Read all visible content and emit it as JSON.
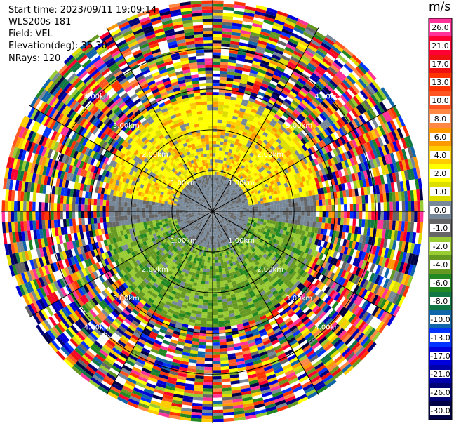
{
  "header": {
    "start_time": "Start time: 2023/09/11 19:09:14",
    "instrument": "WLS200s-181",
    "field": "Field: VEL",
    "elevation": "Elevation(deg): 35.30",
    "nrays": "NRays: 120"
  },
  "colorbar": {
    "unit": "m/s",
    "ticks": [
      "26.0",
      "21.0",
      "17.0",
      "13.0",
      "10.0",
      "8.0",
      "6.0",
      "4.0",
      "2.0",
      "1.0",
      "0.0",
      "-1.0",
      "-2.0",
      "-4.0",
      "-6.0",
      "-8.0",
      "-10.0",
      "-13.0",
      "-17.0",
      "-21.0",
      "-26.0",
      "-30.0"
    ],
    "colors": [
      "#ff3399",
      "#ff0033",
      "#ee1111",
      "#ff3300",
      "#ff5522",
      "#ff8844",
      "#ff9900",
      "#ffcc00",
      "#ffff00",
      "#dddd00",
      "#778899",
      "#666666",
      "#99cc33",
      "#669922",
      "#228822",
      "#117744",
      "#1166aa",
      "#0033ff",
      "#0000dd",
      "#0000aa",
      "#000077",
      "#000044"
    ]
  },
  "chart_data": {
    "type": "heatmap",
    "projection": "polar PPI (plan position indicator)",
    "field": "VEL",
    "n_rays": 120,
    "elevation_deg": 35.3,
    "range_ring_labels_km": [
      "1.00km",
      "2.00km",
      "3.00km",
      "4.00km"
    ],
    "range_rings_km": [
      1,
      2,
      3,
      4
    ],
    "radial_gate_spacing_km": 0.075,
    "max_range_km": 5.2,
    "colorbar_range": [
      -30.0,
      26.0
    ],
    "description_regions": [
      {
        "range_km": [
          0,
          1
        ],
        "sector": "all",
        "values": "near 0 (grey)"
      },
      {
        "range_km": [
          0,
          2.5
        ],
        "sector": "north",
        "values": "2 to 6 (yellow/orange)"
      },
      {
        "range_km": [
          0,
          2.5
        ],
        "sector": "south",
        "values": "-2 to -6 (green)"
      },
      {
        "range_km": [
          2.5,
          5.2
        ],
        "sector": "all",
        "values": "noise, random -30 to 26"
      }
    ]
  }
}
